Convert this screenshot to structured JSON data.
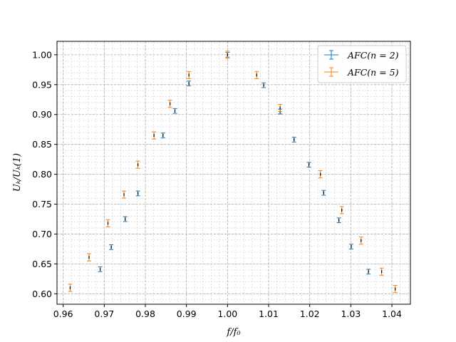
{
  "chart_data": {
    "type": "scatter",
    "title": "",
    "xlabel": "f/f₀",
    "ylabel": "Uₖ/Uₖ(1)",
    "xlim": [
      0.9585,
      1.0445
    ],
    "ylim": [
      0.5825,
      1.0225
    ],
    "x_ticks": [
      0.96,
      0.97,
      0.98,
      0.99,
      1.0,
      1.01,
      1.02,
      1.03,
      1.04
    ],
    "x_tick_labels": [
      "0.96",
      "0.97",
      "0.98",
      "0.99",
      "1.00",
      "1.01",
      "1.02",
      "1.03",
      "1.04"
    ],
    "y_ticks": [
      0.6,
      0.65,
      0.7,
      0.75,
      0.8,
      0.85,
      0.9,
      0.95,
      1.0
    ],
    "y_tick_labels": [
      "0.60",
      "0.65",
      "0.70",
      "0.75",
      "0.80",
      "0.85",
      "0.90",
      "0.95",
      "1.00"
    ],
    "grid": true,
    "minor_grid": true,
    "legend_position": "top-right",
    "legend_labels": [
      "AFC(n = 2)",
      "AFC(n = 5)"
    ],
    "series": [
      {
        "name": "AFC(n = 2)",
        "color": "#1f77b4",
        "x": [
          0.969,
          0.9717,
          0.9751,
          0.9782,
          0.9843,
          0.9872,
          0.9906,
          1.0,
          1.0088,
          1.0128,
          1.0162,
          1.0198,
          1.0234,
          1.0271,
          1.0301,
          1.0343
        ],
        "y": [
          0.641,
          0.678,
          0.725,
          0.768,
          0.865,
          0.906,
          0.952,
          1.0,
          0.949,
          0.905,
          0.858,
          0.816,
          0.769,
          0.723,
          0.679,
          0.637
        ],
        "yerr": 0.004
      },
      {
        "name": "AFC(n = 5)",
        "color": "#ff7f0e",
        "x": [
          0.9617,
          0.9663,
          0.9709,
          0.9748,
          0.9782,
          0.9821,
          0.986,
          0.9906,
          1.0,
          1.0071,
          1.0128,
          1.0226,
          1.0278,
          1.0325,
          1.0375,
          1.0408
        ],
        "y": [
          0.61,
          0.661,
          0.718,
          0.766,
          0.816,
          0.865,
          0.918,
          0.966,
          1.0,
          0.966,
          0.911,
          0.8,
          0.74,
          0.689,
          0.637,
          0.608
        ],
        "yerr": 0.006
      }
    ]
  }
}
